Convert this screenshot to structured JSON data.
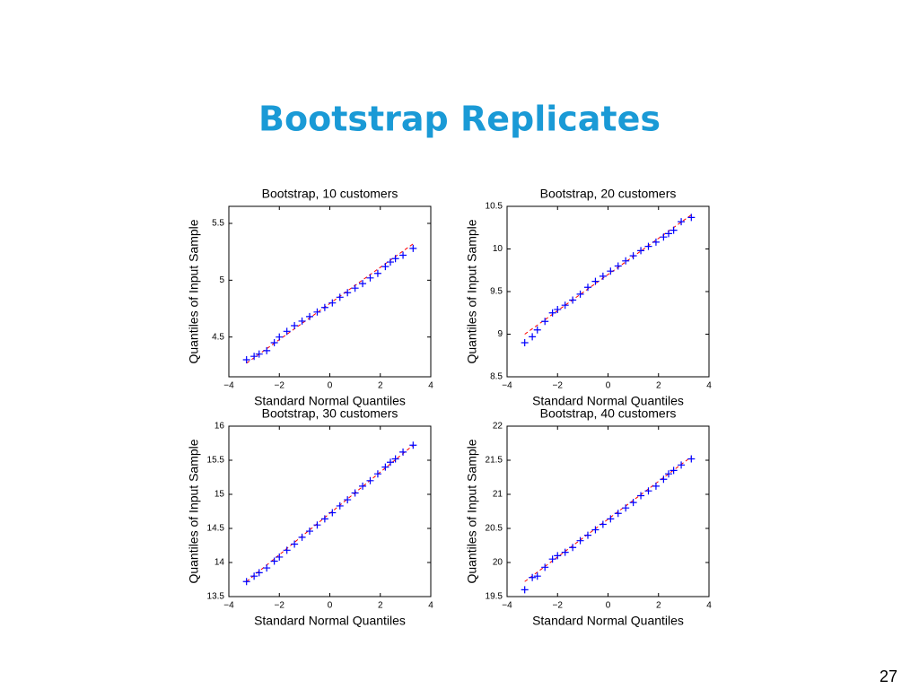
{
  "slide": {
    "title": "Bootstrap Replicates",
    "page_number": "27"
  },
  "chart_data": [
    {
      "type": "scatter",
      "title": "Bootstrap, 10 customers",
      "x_label": "Standard Normal Quantiles",
      "y_label": "Quantiles of Input Sample",
      "color": "#0000ff",
      "line_color": "#ff0000",
      "x": [
        -3.3,
        -3.0,
        -2.8,
        -2.5,
        -2.2,
        -2.0,
        -1.7,
        -1.4,
        -1.1,
        -0.8,
        -0.5,
        -0.2,
        0.1,
        0.4,
        0.7,
        1.0,
        1.3,
        1.6,
        1.9,
        2.2,
        2.4,
        2.6,
        2.9,
        3.3
      ],
      "values": [
        4.3,
        4.33,
        4.35,
        4.38,
        4.45,
        4.5,
        4.55,
        4.6,
        4.64,
        4.68,
        4.72,
        4.76,
        4.8,
        4.85,
        4.89,
        4.93,
        4.97,
        5.02,
        5.06,
        5.12,
        5.16,
        5.19,
        5.22,
        5.28
      ],
      "reference_line": {
        "x": [
          -3.3,
          3.3
        ],
        "values": [
          4.27,
          5.32
        ]
      },
      "xlim": [
        -4,
        4
      ],
      "xticks": [
        {
          "value": -4,
          "label": "−4"
        },
        {
          "value": -2,
          "label": "−2"
        },
        0,
        2,
        4
      ],
      "ylim": [
        4.15,
        5.65
      ],
      "yticks": [
        4.5,
        5,
        5.5
      ]
    },
    {
      "type": "scatter",
      "title": "Bootstrap, 20 customers",
      "x_label": "Standard Normal Quantiles",
      "y_label": "Quantiles of Input Sample",
      "color": "#0000ff",
      "line_color": "#ff0000",
      "x": [
        -3.3,
        -3.0,
        -2.8,
        -2.5,
        -2.2,
        -2.0,
        -1.7,
        -1.4,
        -1.1,
        -0.8,
        -0.5,
        -0.2,
        0.1,
        0.4,
        0.7,
        1.0,
        1.3,
        1.6,
        1.9,
        2.2,
        2.4,
        2.6,
        2.9,
        3.3
      ],
      "values": [
        8.9,
        8.97,
        9.05,
        9.15,
        9.25,
        9.29,
        9.34,
        9.4,
        9.47,
        9.55,
        9.62,
        9.68,
        9.74,
        9.8,
        9.86,
        9.92,
        9.98,
        10.03,
        10.08,
        10.14,
        10.18,
        10.22,
        10.32,
        10.37
      ],
      "reference_line": {
        "x": [
          -3.3,
          3.3
        ],
        "values": [
          9.0,
          10.4
        ]
      },
      "xlim": [
        -4,
        4
      ],
      "xticks": [
        {
          "value": -4,
          "label": "−4"
        },
        {
          "value": -2,
          "label": "−2"
        },
        0,
        2,
        4
      ],
      "ylim": [
        8.5,
        10.5
      ],
      "yticks": [
        8.5,
        9,
        9.5,
        10,
        10.5
      ]
    },
    {
      "type": "scatter",
      "title": "Bootstrap, 30 customers",
      "x_label": "Standard Normal Quantiles",
      "y_label": "Quantiles of Input Sample",
      "color": "#0000ff",
      "line_color": "#ff0000",
      "x": [
        -3.3,
        -3.0,
        -2.8,
        -2.5,
        -2.2,
        -2.0,
        -1.7,
        -1.4,
        -1.1,
        -0.8,
        -0.5,
        -0.2,
        0.1,
        0.4,
        0.7,
        1.0,
        1.3,
        1.6,
        1.9,
        2.2,
        2.4,
        2.6,
        2.9,
        3.3
      ],
      "values": [
        13.72,
        13.8,
        13.85,
        13.92,
        14.02,
        14.08,
        14.18,
        14.27,
        14.37,
        14.46,
        14.55,
        14.64,
        14.73,
        14.83,
        14.92,
        15.02,
        15.12,
        15.2,
        15.3,
        15.4,
        15.47,
        15.52,
        15.62,
        15.72
      ],
      "reference_line": {
        "x": [
          -3.3,
          3.3
        ],
        "values": [
          13.72,
          15.72
        ]
      },
      "xlim": [
        -4,
        4
      ],
      "xticks": [
        {
          "value": -4,
          "label": "−4"
        },
        {
          "value": -2,
          "label": "−2"
        },
        0,
        2,
        4
      ],
      "ylim": [
        13.5,
        16
      ],
      "yticks": [
        13.5,
        14,
        14.5,
        15,
        15.5,
        16
      ]
    },
    {
      "type": "scatter",
      "title": "Bootstrap, 40 customers",
      "x_label": "Standard Normal Quantiles",
      "y_label": "Quantiles of Input Sample",
      "color": "#0000ff",
      "line_color": "#ff0000",
      "x": [
        -3.3,
        -3.0,
        -2.8,
        -2.5,
        -2.2,
        -2.0,
        -1.7,
        -1.4,
        -1.1,
        -0.8,
        -0.5,
        -0.2,
        0.1,
        0.4,
        0.7,
        1.0,
        1.3,
        1.6,
        1.9,
        2.2,
        2.4,
        2.6,
        2.9,
        3.3
      ],
      "values": [
        19.6,
        19.78,
        19.8,
        19.93,
        20.05,
        20.1,
        20.15,
        20.22,
        20.32,
        20.4,
        20.48,
        20.56,
        20.64,
        20.72,
        20.8,
        20.88,
        20.98,
        21.05,
        21.12,
        21.22,
        21.3,
        21.35,
        21.43,
        21.52
      ],
      "reference_line": {
        "x": [
          -3.3,
          3.3
        ],
        "values": [
          19.72,
          21.55
        ]
      },
      "xlim": [
        -4,
        4
      ],
      "xticks": [
        {
          "value": -4,
          "label": "−4"
        },
        {
          "value": -2,
          "label": "−2"
        },
        0,
        2,
        4
      ],
      "ylim": [
        19.5,
        22
      ],
      "yticks": [
        19.5,
        20,
        20.5,
        21,
        21.5,
        22
      ]
    }
  ]
}
